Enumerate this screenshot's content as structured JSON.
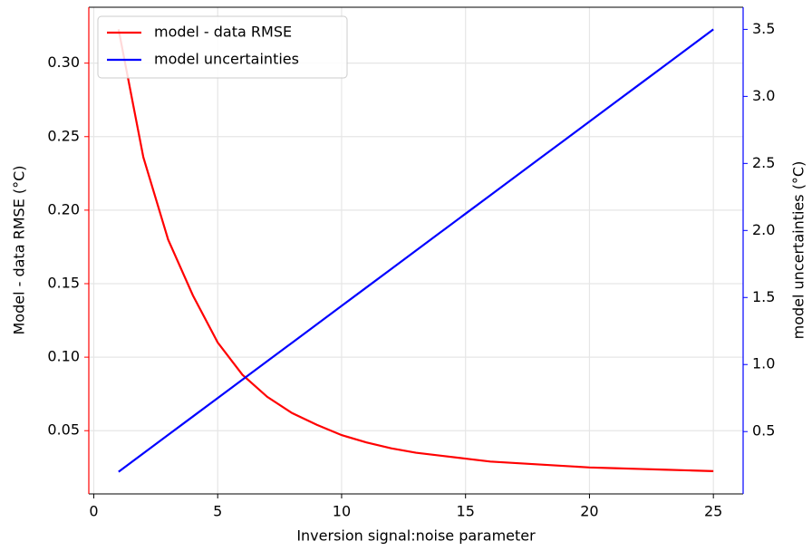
{
  "chart_data": {
    "type": "line",
    "x_label": "Inversion signal:noise parameter",
    "y_label": "Model - data RMSE (°C)",
    "y2_label": "model uncertainties (°C)",
    "x": [
      1,
      2,
      3,
      4,
      5,
      6,
      7,
      8,
      9,
      10,
      11,
      12,
      13,
      14,
      15,
      16,
      17,
      18,
      19,
      20,
      21,
      22,
      23,
      24,
      25
    ],
    "series": [
      {
        "name": "model - data RMSE",
        "color": "#ff0000",
        "axis": "y",
        "values": [
          0.323,
          0.236,
          0.18,
          0.142,
          0.11,
          0.088,
          0.073,
          0.062,
          0.054,
          0.047,
          0.042,
          0.038,
          0.035,
          0.033,
          0.031,
          0.029,
          0.028,
          0.027,
          0.026,
          0.025,
          0.0245,
          0.024,
          0.0235,
          0.023,
          0.0225
        ]
      },
      {
        "name": "model uncertainties",
        "color": "#0000ff",
        "axis": "y2",
        "values": [
          0.2,
          0.3375,
          0.475,
          0.6125,
          0.75,
          0.8875,
          1.025,
          1.1625,
          1.3,
          1.4375,
          1.575,
          1.7125,
          1.85,
          1.9875,
          2.125,
          2.2625,
          2.4,
          2.5375,
          2.675,
          2.8125,
          2.95,
          3.0875,
          3.225,
          3.3625,
          3.5
        ]
      }
    ],
    "xlim": [
      -0.2,
      26.2
    ],
    "xticks": [
      0,
      5,
      10,
      15,
      20,
      25
    ],
    "ylim": [
      0.007,
      0.338
    ],
    "yticks": [
      0.05,
      {
        "value": 0.1,
        "label": "0.10"
      },
      0.15,
      {
        "value": 0.2,
        "label": "0.20"
      },
      0.25,
      {
        "value": 0.3,
        "label": "0.30"
      }
    ],
    "y2lim": [
      0.035,
      3.665
    ],
    "y2ticks": [
      0.5,
      {
        "value": 1,
        "label": "1.0"
      },
      1.5,
      {
        "value": 2,
        "label": "2.0"
      },
      2.5,
      {
        "value": 3,
        "label": "3.0"
      },
      3.5
    ],
    "grid": true,
    "legend": "upper-left"
  }
}
